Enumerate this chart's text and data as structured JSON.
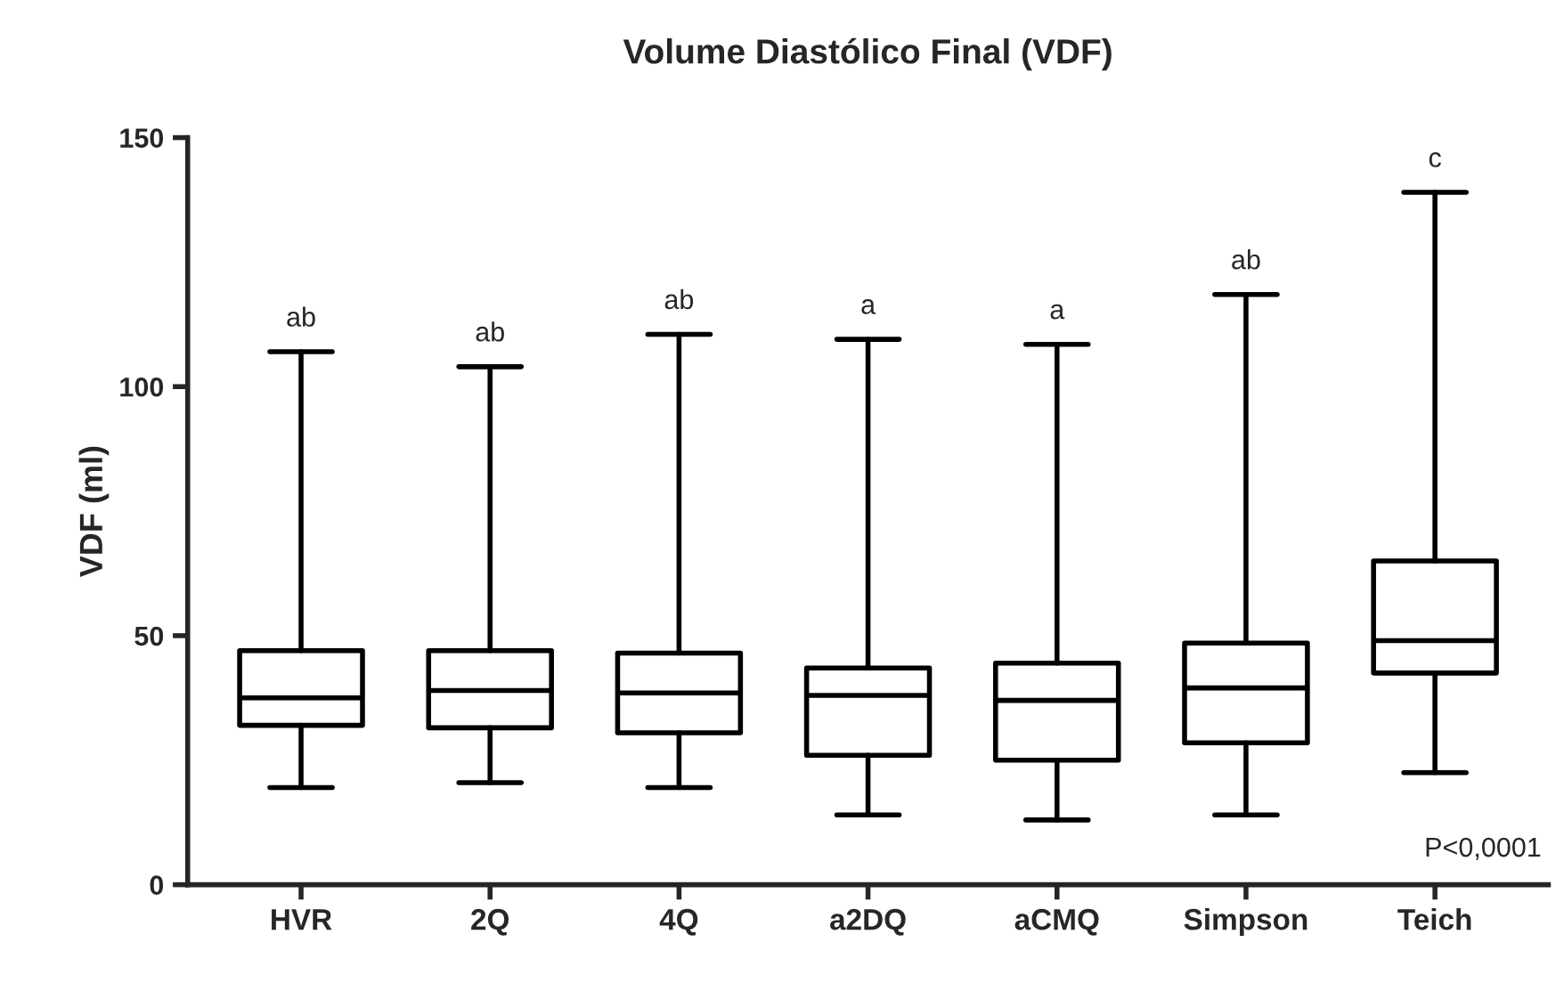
{
  "chart_data": {
    "type": "box",
    "title": "Volume Diastólico Final (VDF)",
    "ylabel": "VDF (ml)",
    "categories": [
      "HVR",
      "2Q",
      "4Q",
      "a2DQ",
      "aCMQ",
      "Simpson",
      "Teich"
    ],
    "boxes": [
      {
        "low": 19.5,
        "q1": 32,
        "median": 37.5,
        "q3": 47,
        "high": 107
      },
      {
        "low": 20.5,
        "q1": 31.5,
        "median": 39,
        "q3": 47,
        "high": 104
      },
      {
        "low": 19.5,
        "q1": 30.5,
        "median": 38.5,
        "q3": 46.5,
        "high": 110.5
      },
      {
        "low": 14,
        "q1": 26,
        "median": 38,
        "q3": 43.5,
        "high": 109.5
      },
      {
        "low": 13,
        "q1": 25,
        "median": 37,
        "q3": 44.5,
        "high": 108.5
      },
      {
        "low": 14,
        "q1": 28.5,
        "median": 39.5,
        "q3": 48.5,
        "high": 118.5
      },
      {
        "low": 22.5,
        "q1": 42.5,
        "median": 49,
        "q3": 65,
        "high": 139
      }
    ],
    "color": "#000000",
    "ylim": [
      0,
      150
    ],
    "yticks": [
      0,
      50,
      100,
      150
    ],
    "grid": false,
    "annotations": [
      {
        "text": "ab",
        "x": "HVR",
        "y": 107
      },
      {
        "text": "ab",
        "x": "2Q",
        "y": 104
      },
      {
        "text": "ab",
        "x": "4Q",
        "y": 110.5
      },
      {
        "text": "a",
        "x": "a2DQ",
        "y": 109.5
      },
      {
        "text": "a",
        "x": "aCMQ",
        "y": 108.5
      },
      {
        "text": "ab",
        "x": "Simpson",
        "y": 118.5
      },
      {
        "text": "c",
        "x": "Teich",
        "y": 139
      },
      "P<0,0001"
    ]
  }
}
